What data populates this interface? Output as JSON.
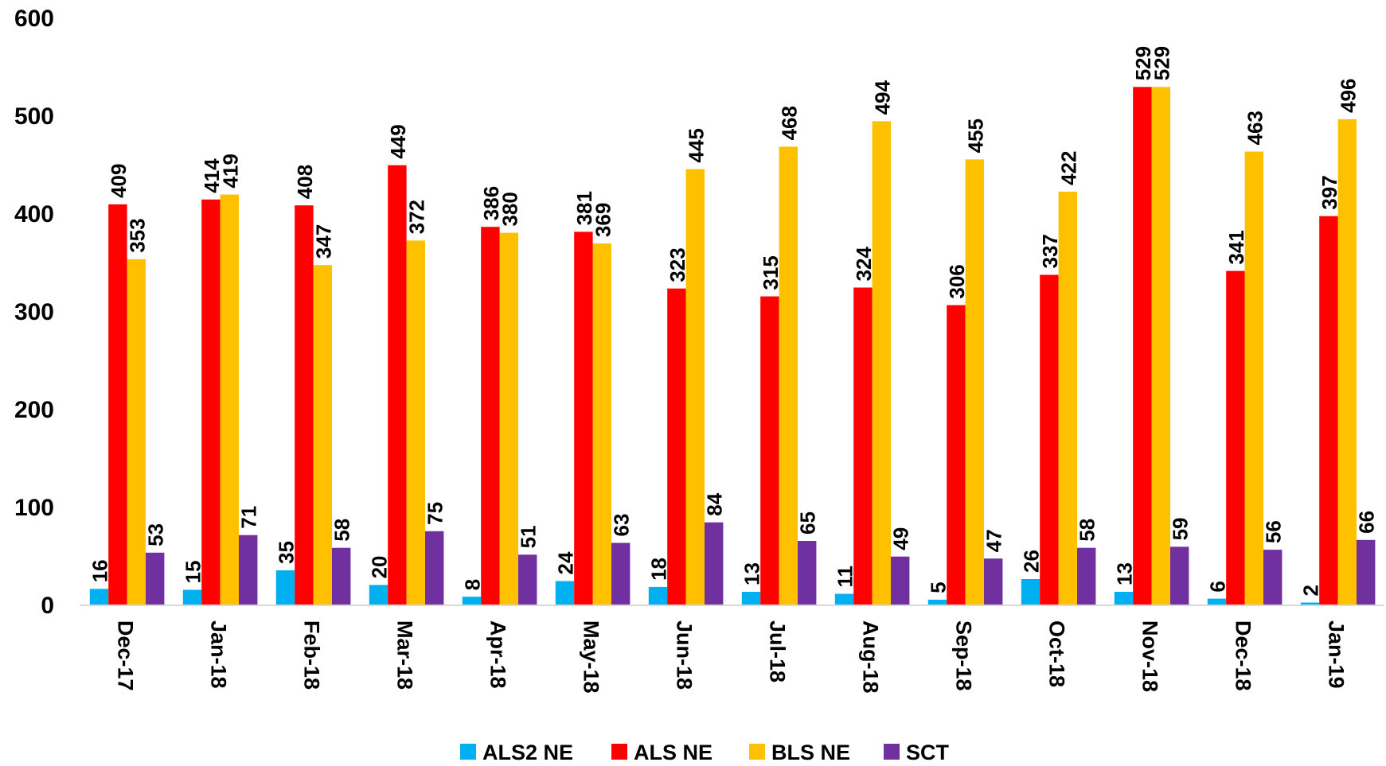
{
  "chart_data": {
    "type": "bar",
    "title": "",
    "xlabel": "",
    "ylabel": "",
    "ylim": [
      0,
      600
    ],
    "yticks": [
      0,
      100,
      200,
      300,
      400,
      500,
      600
    ],
    "grid": false,
    "legend_position": "bottom",
    "categories": [
      "Dec-17",
      "Jan-18",
      "Feb-18",
      "Mar-18",
      "Apr-18",
      "May-18",
      "Jun-18",
      "Jul-18",
      "Aug-18",
      "Sep-18",
      "Oct-18",
      "Nov-18",
      "Dec-18",
      "Jan-19"
    ],
    "series": [
      {
        "name": "ALS2 NE",
        "color": "#00b0f0",
        "values": [
          16,
          15,
          35,
          20,
          8,
          24,
          18,
          13,
          11,
          5,
          26,
          13,
          6,
          2
        ]
      },
      {
        "name": "ALS NE",
        "color": "#ff0000",
        "values": [
          409,
          414,
          408,
          449,
          386,
          381,
          323,
          315,
          324,
          306,
          337,
          529,
          341,
          397
        ]
      },
      {
        "name": "BLS NE",
        "color": "#ffc000",
        "values": [
          353,
          419,
          347,
          372,
          380,
          369,
          445,
          468,
          494,
          455,
          422,
          529,
          463,
          496
        ]
      },
      {
        "name": "SCT",
        "color": "#7030a0",
        "values": [
          53,
          71,
          58,
          75,
          51,
          63,
          84,
          65,
          49,
          47,
          58,
          59,
          56,
          66
        ]
      }
    ]
  }
}
